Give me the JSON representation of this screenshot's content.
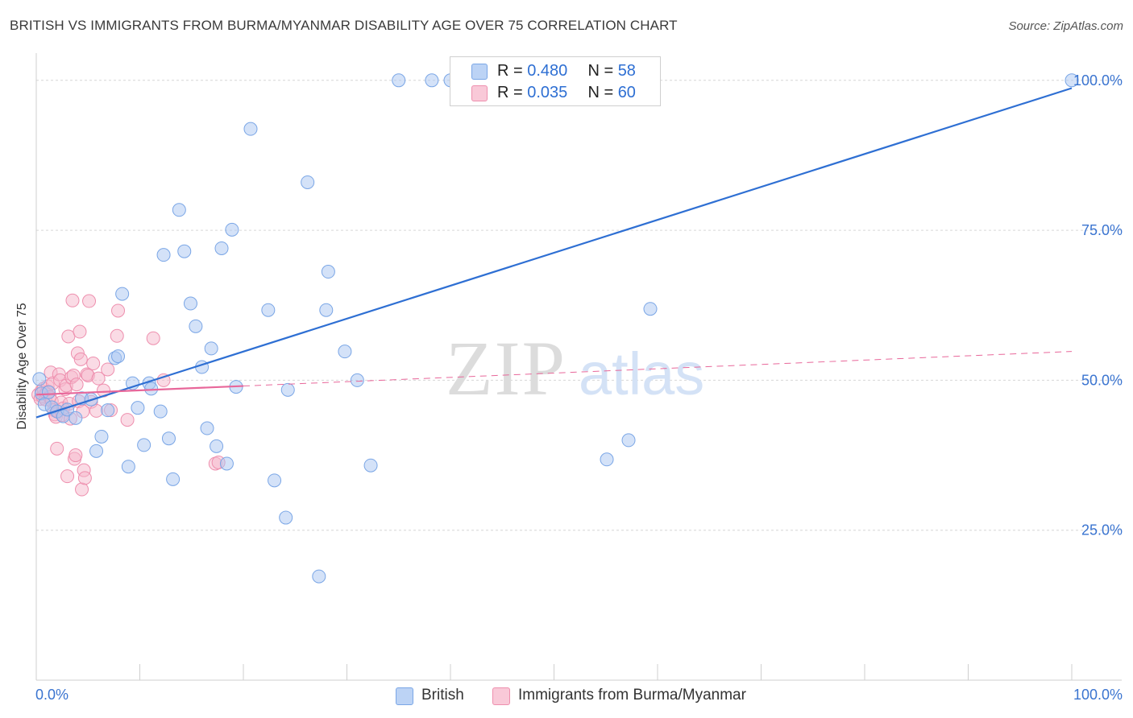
{
  "title": "BRITISH VS IMMIGRANTS FROM BURMA/MYANMAR DISABILITY AGE OVER 75 CORRELATION CHART",
  "source": "Source: ZipAtlas.com",
  "watermark": {
    "zip": "ZIP",
    "atlas": "atlas"
  },
  "legend_top": {
    "rows": [
      {
        "r_label": "R = ",
        "r_value": "0.480",
        "n_label": "N = ",
        "n_value": "58"
      },
      {
        "r_label": "R = ",
        "r_value": "0.035",
        "n_label": "N = ",
        "n_value": "60"
      }
    ]
  },
  "legend_bottom": {
    "items": [
      "British",
      "Immigrants from Burma/Myanmar"
    ]
  },
  "colors": {
    "blue_fill": "#a9c6f2",
    "blue_stroke": "#7aa6e6",
    "blue_line": "#2e6fd3",
    "pink_fill": "#f6b8cc",
    "pink_stroke": "#ee8fae",
    "pink_line": "#e8679a",
    "axis_text": "#3a74d0",
    "grid": "#d6d6d6"
  },
  "chart_data": {
    "type": "scatter",
    "title": "BRITISH VS IMMIGRANTS FROM BURMA/MYANMAR DISABILITY AGE OVER 75 CORRELATION CHART",
    "xlabel": "",
    "ylabel": "Disability Age Over 75",
    "xlim": [
      0,
      100
    ],
    "ylim": [
      0,
      104
    ],
    "x_tick_labels": [
      "0.0%",
      "100.0%"
    ],
    "y_ticks": [
      25,
      50,
      75,
      100
    ],
    "y_tick_labels": [
      "25.0%",
      "50.0%",
      "75.0%",
      "100.0%"
    ],
    "series": [
      {
        "name": "British",
        "R": 0.48,
        "N": 58,
        "trend": {
          "x": [
            0,
            100
          ],
          "y": [
            43.8,
            98.7
          ]
        },
        "points": [
          [
            0.3,
            50.2
          ],
          [
            0.5,
            47.8
          ],
          [
            0.8,
            46.0
          ],
          [
            1.2,
            48.0
          ],
          [
            1.5,
            45.5
          ],
          [
            2.0,
            44.8
          ],
          [
            2.6,
            44.0
          ],
          [
            3.0,
            45.1
          ],
          [
            3.8,
            43.7
          ],
          [
            4.4,
            47.0
          ],
          [
            5.3,
            46.8
          ],
          [
            5.8,
            38.2
          ],
          [
            6.3,
            40.6
          ],
          [
            6.9,
            45.0
          ],
          [
            7.6,
            53.7
          ],
          [
            7.9,
            54.0
          ],
          [
            8.3,
            64.4
          ],
          [
            8.9,
            35.6
          ],
          [
            9.3,
            49.5
          ],
          [
            9.8,
            45.4
          ],
          [
            10.4,
            39.2
          ],
          [
            10.9,
            49.5
          ],
          [
            11.1,
            48.6
          ],
          [
            12.0,
            44.8
          ],
          [
            12.3,
            70.9
          ],
          [
            12.8,
            40.3
          ],
          [
            13.2,
            33.5
          ],
          [
            13.8,
            78.4
          ],
          [
            14.3,
            71.5
          ],
          [
            14.9,
            62.8
          ],
          [
            15.4,
            59.0
          ],
          [
            16.0,
            52.2
          ],
          [
            16.5,
            42.0
          ],
          [
            16.9,
            55.3
          ],
          [
            17.4,
            39.0
          ],
          [
            17.9,
            72.0
          ],
          [
            18.4,
            36.1
          ],
          [
            18.9,
            75.1
          ],
          [
            19.3,
            48.9
          ],
          [
            20.7,
            91.9
          ],
          [
            22.4,
            61.7
          ],
          [
            23.0,
            33.3
          ],
          [
            24.1,
            27.1
          ],
          [
            24.3,
            48.4
          ],
          [
            26.2,
            83.0
          ],
          [
            27.3,
            17.3
          ],
          [
            28.0,
            61.7
          ],
          [
            28.2,
            68.1
          ],
          [
            29.8,
            54.8
          ],
          [
            31.0,
            50.0
          ],
          [
            32.3,
            35.8
          ],
          [
            35.0,
            100.0
          ],
          [
            38.2,
            100.0
          ],
          [
            40.0,
            100.0
          ],
          [
            55.1,
            36.8
          ],
          [
            57.2,
            40.0
          ],
          [
            59.3,
            61.9
          ],
          [
            100.0,
            100.0
          ]
        ]
      },
      {
        "name": "Immigrants from Burma/Myanmar",
        "R": 0.035,
        "N": 60,
        "trend": {
          "x": [
            0,
            100
          ],
          "y": [
            47.6,
            54.8
          ],
          "solid_until_x": 20
        },
        "points": [
          [
            0.2,
            47.6
          ],
          [
            0.4,
            46.9
          ],
          [
            0.5,
            48.2
          ],
          [
            0.6,
            47.3
          ],
          [
            0.7,
            48.6
          ],
          [
            0.9,
            46.8
          ],
          [
            1.0,
            47.9
          ],
          [
            1.1,
            49.0
          ],
          [
            1.2,
            48.1
          ],
          [
            1.3,
            47.2
          ],
          [
            1.4,
            51.3
          ],
          [
            1.5,
            46.5
          ],
          [
            1.6,
            49.5
          ],
          [
            1.7,
            45.0
          ],
          [
            1.8,
            44.3
          ],
          [
            1.9,
            43.9
          ],
          [
            2.0,
            38.6
          ],
          [
            2.1,
            44.8
          ],
          [
            2.2,
            51.0
          ],
          [
            2.3,
            50.0
          ],
          [
            2.4,
            46.3
          ],
          [
            2.5,
            44.2
          ],
          [
            2.6,
            45.3
          ],
          [
            2.8,
            48.5
          ],
          [
            2.9,
            49.1
          ],
          [
            3.0,
            34.0
          ],
          [
            3.1,
            57.3
          ],
          [
            3.2,
            46.1
          ],
          [
            3.3,
            43.6
          ],
          [
            3.4,
            50.5
          ],
          [
            3.5,
            63.3
          ],
          [
            3.6,
            50.8
          ],
          [
            3.7,
            36.9
          ],
          [
            3.8,
            37.5
          ],
          [
            3.9,
            49.3
          ],
          [
            4.0,
            54.5
          ],
          [
            4.1,
            46.5
          ],
          [
            4.2,
            58.1
          ],
          [
            4.3,
            53.5
          ],
          [
            4.4,
            31.8
          ],
          [
            4.5,
            44.8
          ],
          [
            4.6,
            35.0
          ],
          [
            4.7,
            33.7
          ],
          [
            4.9,
            51.0
          ],
          [
            5.0,
            50.8
          ],
          [
            5.1,
            63.2
          ],
          [
            5.3,
            46.4
          ],
          [
            5.5,
            52.8
          ],
          [
            5.8,
            44.9
          ],
          [
            6.0,
            50.3
          ],
          [
            6.5,
            48.3
          ],
          [
            6.9,
            51.8
          ],
          [
            7.2,
            45.0
          ],
          [
            7.8,
            57.4
          ],
          [
            7.9,
            61.6
          ],
          [
            8.8,
            43.4
          ],
          [
            11.3,
            57.0
          ],
          [
            12.3,
            50.0
          ],
          [
            17.3,
            36.1
          ],
          [
            17.6,
            36.3
          ]
        ]
      }
    ]
  }
}
